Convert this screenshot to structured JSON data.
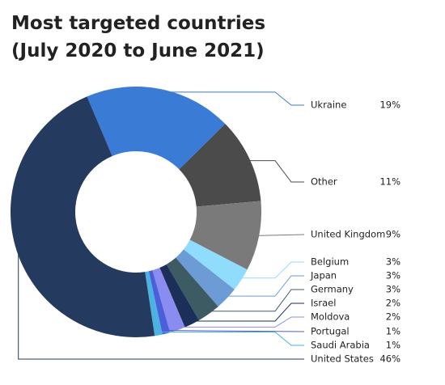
{
  "chart_data": {
    "type": "donut",
    "title": "Most targeted countries",
    "subtitle": "(July 2020 to June 2021)",
    "categories": [
      "Ukraine",
      "Other",
      "United Kingdom",
      "Belgium",
      "Japan",
      "Germany",
      "Israel",
      "Moldova",
      "Portugal",
      "Saudi Arabia",
      "United States"
    ],
    "values": [
      19,
      11,
      9,
      3,
      3,
      3,
      2,
      2,
      1,
      1,
      46
    ],
    "value_labels": [
      "19%",
      "11%",
      "9%",
      "3%",
      "3%",
      "3%",
      "2%",
      "2%",
      "1%",
      "1%",
      "46%"
    ],
    "colors": [
      "#3a7bd5",
      "#4b4b4b",
      "#7a7a7a",
      "#8fdcfc",
      "#6c9bd6",
      "#3d5b63",
      "#1b2f58",
      "#8b8cf0",
      "#4b5fd9",
      "#4bb2e2",
      "#243a5e"
    ]
  }
}
